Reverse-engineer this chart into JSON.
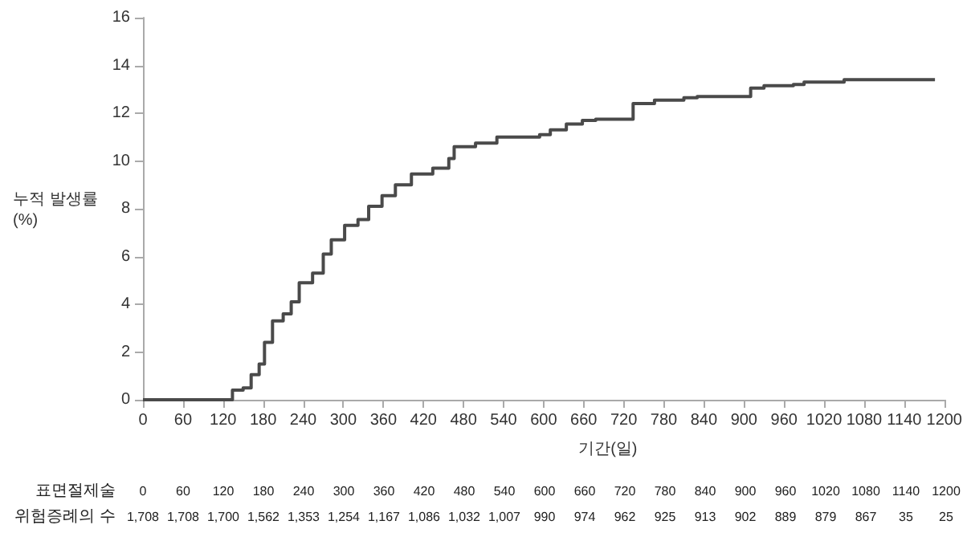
{
  "chart_data": {
    "type": "step",
    "xlabel": "기간(일)",
    "ylabel": "누적 발생률\n(%)",
    "x": [
      0,
      125,
      134,
      150,
      162,
      174,
      182,
      194,
      210,
      222,
      234,
      254,
      270,
      282,
      302,
      322,
      338,
      358,
      378,
      402,
      434,
      458,
      466,
      498,
      530,
      594,
      610,
      634,
      658,
      678,
      734,
      766,
      810,
      830,
      910,
      930,
      974,
      990,
      1050,
      1186
    ],
    "values": [
      0,
      0,
      0.4,
      0.5,
      1.05,
      1.5,
      2.4,
      3.3,
      3.6,
      4.1,
      4.9,
      5.3,
      6.1,
      6.7,
      7.3,
      7.55,
      8.1,
      8.55,
      9.0,
      9.45,
      9.7,
      10.1,
      10.6,
      10.75,
      11.0,
      11.1,
      11.3,
      11.55,
      11.7,
      11.75,
      12.4,
      12.55,
      12.65,
      12.7,
      13.05,
      13.15,
      13.2,
      13.3,
      13.4,
      13.4
    ],
    "color": "#4a4a4a",
    "marker": "none",
    "xlim": [
      0,
      1200
    ],
    "xticks": [
      0,
      60,
      120,
      180,
      240,
      300,
      360,
      420,
      480,
      540,
      600,
      660,
      720,
      780,
      840,
      900,
      960,
      1020,
      1080,
      1140,
      1200
    ],
    "ylim": [
      0,
      16
    ],
    "yticks": [
      0,
      2,
      4,
      6,
      8,
      10,
      12,
      14,
      16
    ],
    "annotations": [
      "표면절제술",
      "0",
      "60",
      "120",
      "180",
      "240",
      "300",
      "360",
      "420",
      "480",
      "540",
      "600",
      "660",
      "720",
      "780",
      "840",
      "900",
      "960",
      "1020",
      "1080",
      "1140",
      "1200",
      "위험증례의 수",
      "1,708",
      "1,708",
      "1,700",
      "1,562",
      "1,353",
      "1,254",
      "1,167",
      "1,086",
      "1,032",
      "1,007",
      "990",
      "974",
      "962",
      "925",
      "913",
      "902",
      "889",
      "879",
      "867",
      "35",
      "25"
    ]
  }
}
